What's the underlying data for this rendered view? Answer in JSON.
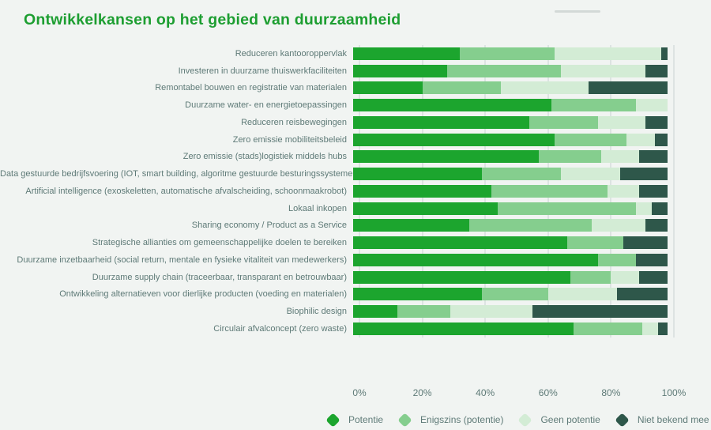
{
  "page": {
    "background": "#f1f4f2",
    "title_color": "#1d9e31",
    "text_color": "#5e7a77",
    "gridline_color": "#dde3e2"
  },
  "chart_data": {
    "type": "bar",
    "orientation": "horizontal",
    "stacked": true,
    "unit": "%",
    "title": "Ontwikkelkansen op het gebied van duurzaamheid",
    "xlabel": "",
    "ylabel": "",
    "xlim": [
      0,
      100
    ],
    "x_ticks": [
      "0%",
      "20%",
      "40%",
      "60%",
      "80%",
      "100%"
    ],
    "grid": "vertical",
    "legend_position": "bottom",
    "categories": [
      "Reduceren kantooroppervlak",
      "Investeren in duurzame thuiswerkfaciliteiten",
      "Remontabel bouwen en registratie van materialen",
      "Duurzame water- en energietoepassingen",
      "Reduceren reisbewegingen",
      "Zero emissie mobiliteitsbeleid",
      "Zero emissie (stads)logistiek middels hubs",
      "Data gestuurde bedrijfsvoering (IOT, smart building, algoritme gestuurde besturingssystemen)",
      "Artificial intelligence (exoskeletten, automatische afvalscheiding, schoonmaakrobot)",
      "Lokaal inkopen",
      "Sharing economy / Product as a Service",
      "Strategische allianties om gemeenschappelijke doelen te bereiken",
      "Duurzame inzetbaarheid (social return, mentale en fysieke vitaliteit van medewerkers)",
      "Duurzame supply chain (traceerbaar, transparant en betrouwbaar)",
      "Ontwikkeling alternatieven voor dierlijke producten (voeding en materialen)",
      "Biophilic design",
      "Circulair afvalconcept (zero waste)"
    ],
    "series": [
      {
        "name": "Potentie",
        "color": "#1ca52e",
        "values": [
          34,
          30,
          22,
          63,
          56,
          64,
          59,
          41,
          44,
          46,
          37,
          68,
          78,
          69,
          41,
          14,
          70
        ]
      },
      {
        "name": "Enigszins (potentie)",
        "color": "#85ce8e",
        "values": [
          30,
          36,
          25,
          27,
          22,
          23,
          20,
          25,
          37,
          44,
          39,
          18,
          12,
          13,
          21,
          17,
          22
        ]
      },
      {
        "name": "Geen potentie",
        "color": "#d3ecd5",
        "values": [
          34,
          27,
          28,
          10,
          15,
          9,
          12,
          19,
          10,
          5,
          17,
          0,
          0,
          9,
          22,
          26,
          5
        ]
      },
      {
        "name": "Niet bekend mee",
        "color": "#2e574a",
        "values": [
          2,
          7,
          25,
          0,
          7,
          4,
          9,
          15,
          9,
          5,
          7,
          14,
          10,
          9,
          16,
          43,
          3
        ]
      }
    ]
  }
}
